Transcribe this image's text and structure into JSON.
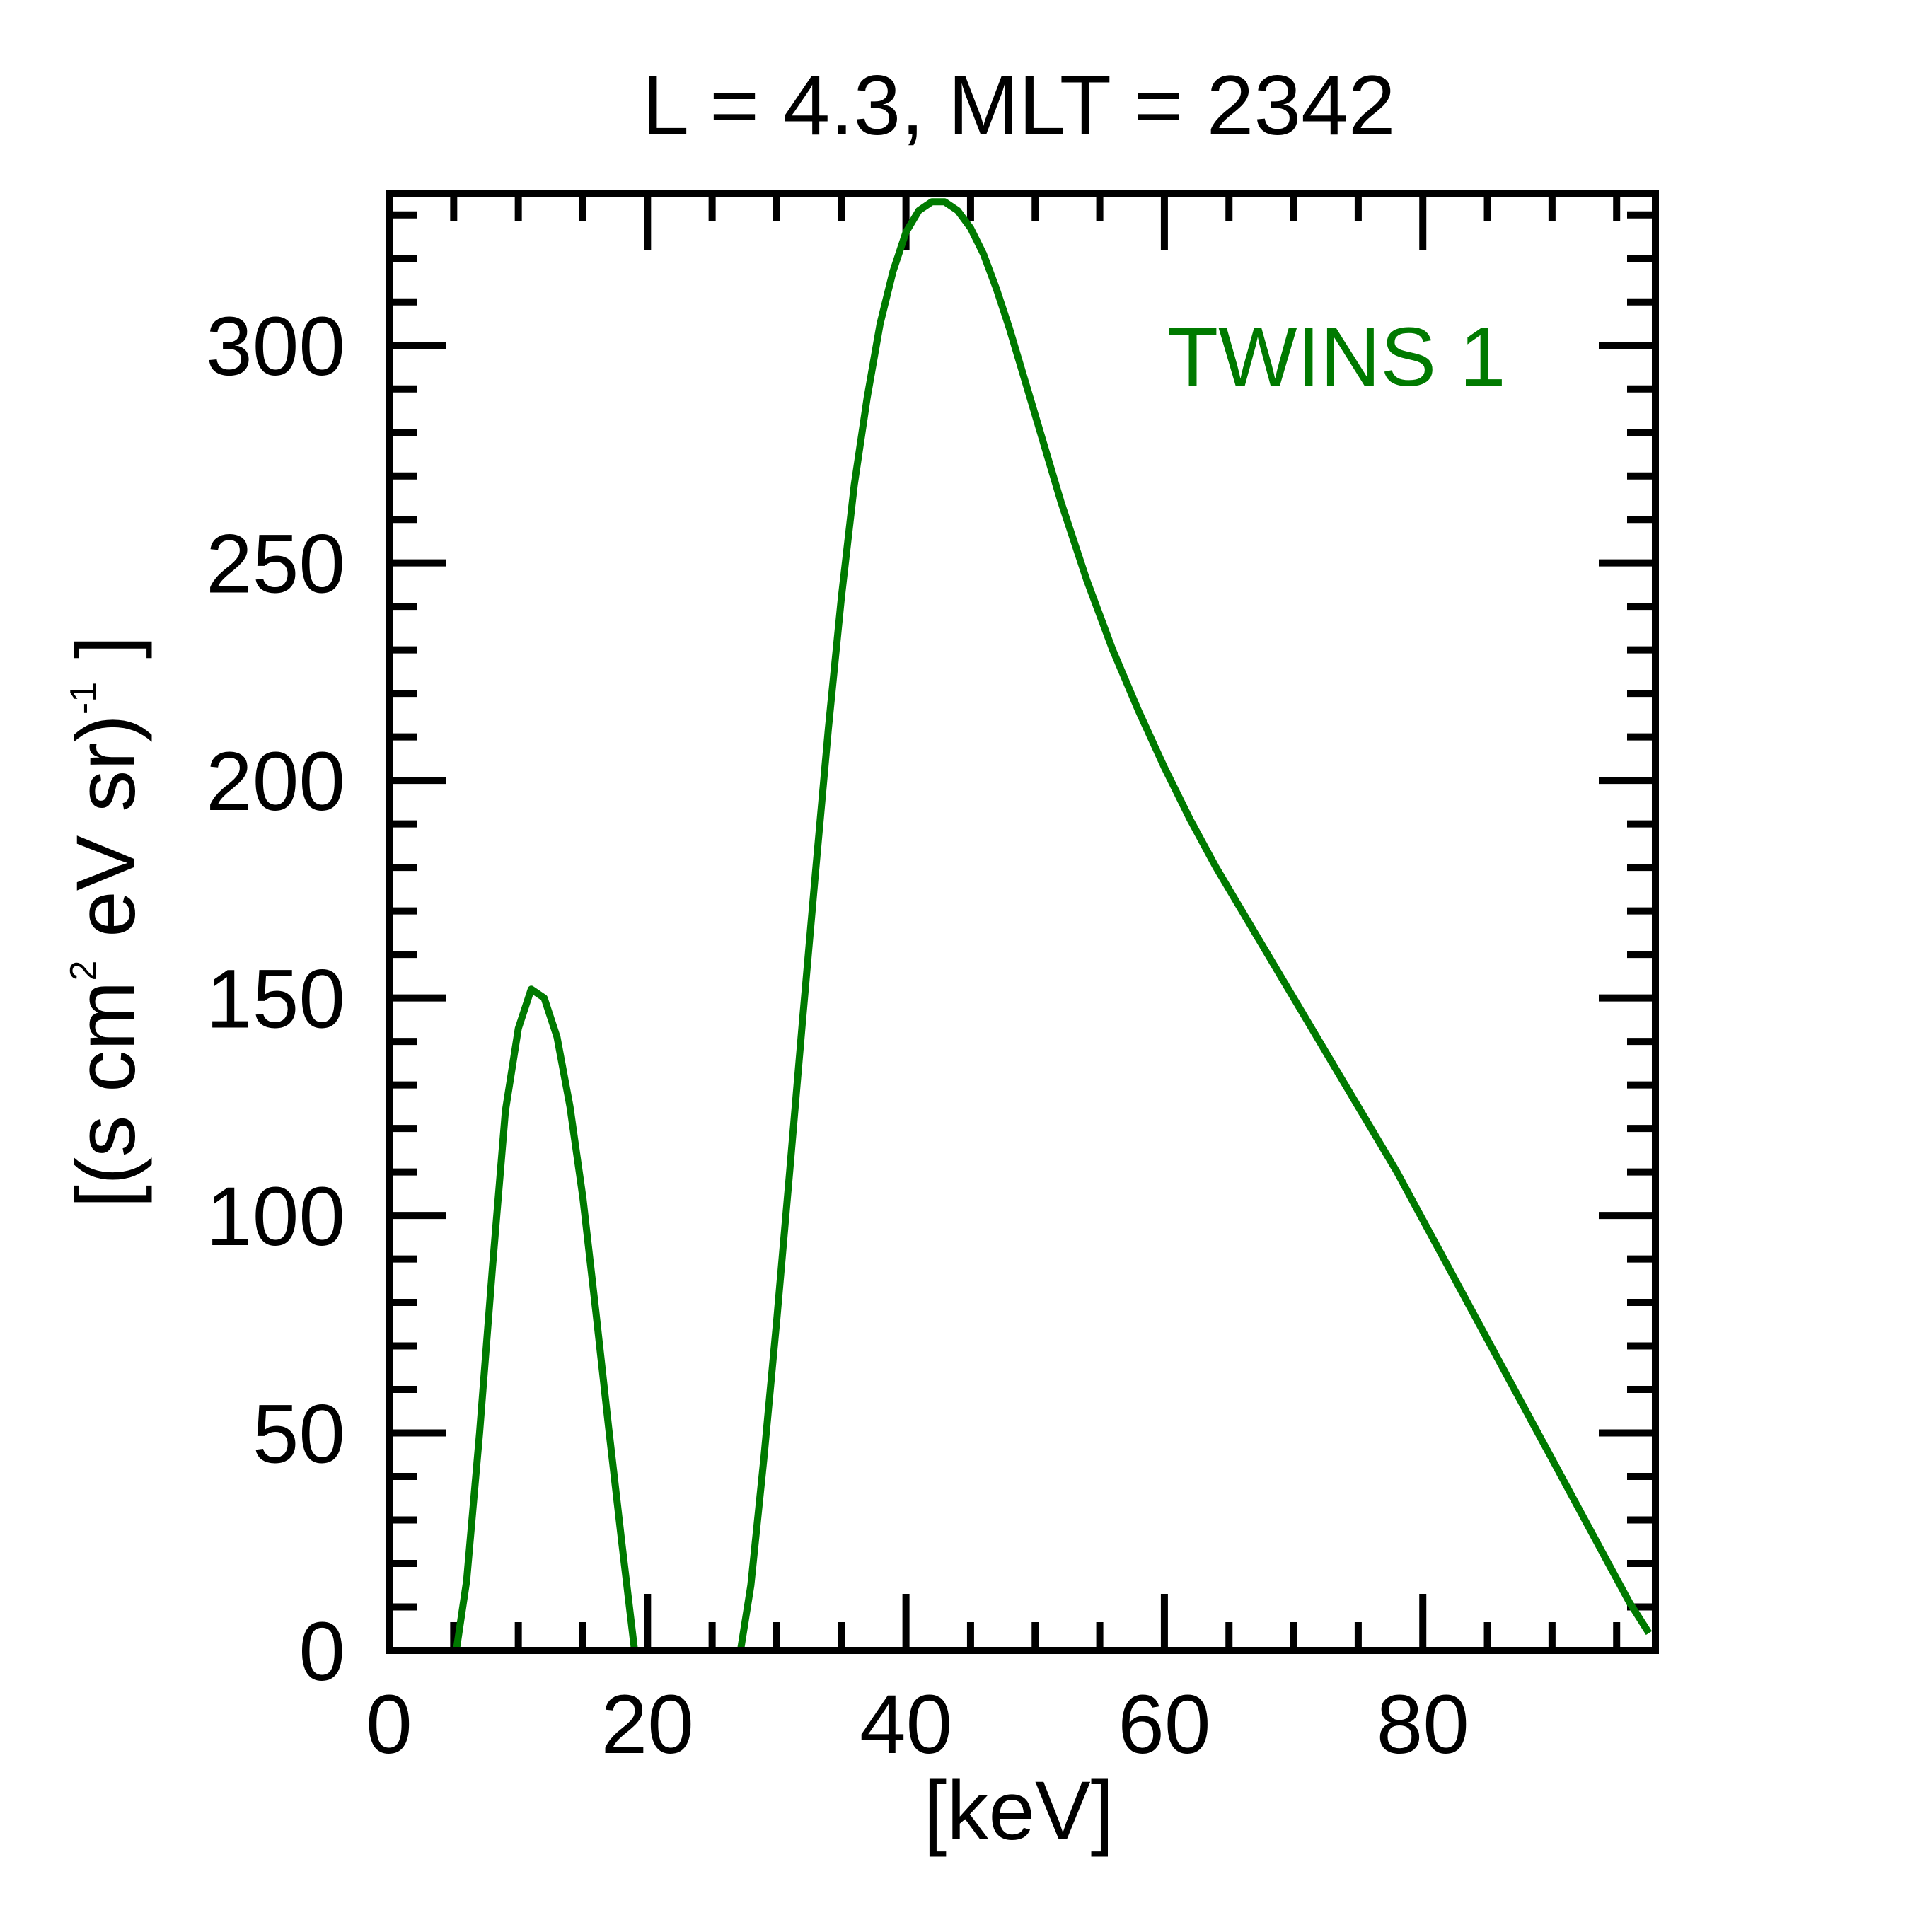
{
  "chart_data": {
    "type": "line",
    "title": "L =  4.3, MLT = 2342",
    "xlabel": "[keV]",
    "ylabel": {
      "prefix": "[(s cm",
      "sup1": "2",
      "middle": " eV sr)",
      "sup2": "-1",
      "suffix": " ]"
    },
    "xlim": [
      0,
      98
    ],
    "ylim": [
      0,
      335
    ],
    "x_ticks": [
      0,
      20,
      40,
      60,
      80
    ],
    "x_tick_labels": [
      "0",
      "20",
      "40",
      "60",
      "80"
    ],
    "y_ticks": [
      0,
      50,
      100,
      150,
      200,
      250,
      300
    ],
    "y_tick_labels": [
      "0",
      "50",
      "100",
      "150",
      "200",
      "250",
      "300"
    ],
    "x_minor_step": 5,
    "y_minor_step": 10,
    "grid": false,
    "legend_placement": "top-right",
    "series": [
      {
        "name": "TWINS 1",
        "color": "#007a00",
        "segments": [
          [
            [
              5.2,
              0
            ],
            [
              6.0,
              16
            ],
            [
              7.0,
              50
            ],
            [
              8.0,
              88
            ],
            [
              9.0,
              124
            ],
            [
              10.0,
              143
            ],
            [
              11.0,
              152
            ],
            [
              12.0,
              150
            ],
            [
              13.0,
              141
            ],
            [
              14.0,
              125
            ],
            [
              15.0,
              104
            ],
            [
              16.0,
              78
            ],
            [
              17.0,
              51
            ],
            [
              18.0,
              25
            ],
            [
              19.0,
              0
            ]
          ],
          [
            [
              27.2,
              0
            ],
            [
              28.0,
              15
            ],
            [
              29.0,
              44
            ],
            [
              30.0,
              76
            ],
            [
              31.0,
              110
            ],
            [
              32.0,
              145
            ],
            [
              33.0,
              179
            ],
            [
              34.0,
              212
            ],
            [
              35.0,
              242
            ],
            [
              36.0,
              268
            ],
            [
              37.0,
              288
            ],
            [
              38.0,
              305
            ],
            [
              39.0,
              317
            ],
            [
              40.0,
              326
            ],
            [
              41.0,
              331
            ],
            [
              42.0,
              333
            ],
            [
              43.0,
              333
            ],
            [
              44.0,
              331
            ],
            [
              45.0,
              327
            ],
            [
              46.0,
              321
            ],
            [
              47.0,
              313
            ],
            [
              48.0,
              304
            ],
            [
              49.0,
              294
            ],
            [
              50.0,
              284
            ],
            [
              52.0,
              264
            ],
            [
              54.0,
              246
            ],
            [
              56.0,
              230
            ],
            [
              58.0,
              216
            ],
            [
              60.0,
              203
            ],
            [
              62.0,
              191
            ],
            [
              64.0,
              180
            ],
            [
              66.0,
              170
            ],
            [
              68.0,
              160
            ],
            [
              70.0,
              150
            ],
            [
              72.0,
              140
            ],
            [
              74.0,
              130
            ],
            [
              76.0,
              120
            ],
            [
              78.0,
              110
            ],
            [
              80.0,
              99
            ],
            [
              82.0,
              88
            ],
            [
              84.0,
              77
            ],
            [
              86.0,
              66
            ],
            [
              88.0,
              55
            ],
            [
              90.0,
              44
            ],
            [
              92.0,
              33
            ],
            [
              94.0,
              22
            ],
            [
              96.0,
              11
            ],
            [
              97.5,
              4
            ]
          ]
        ]
      }
    ]
  }
}
